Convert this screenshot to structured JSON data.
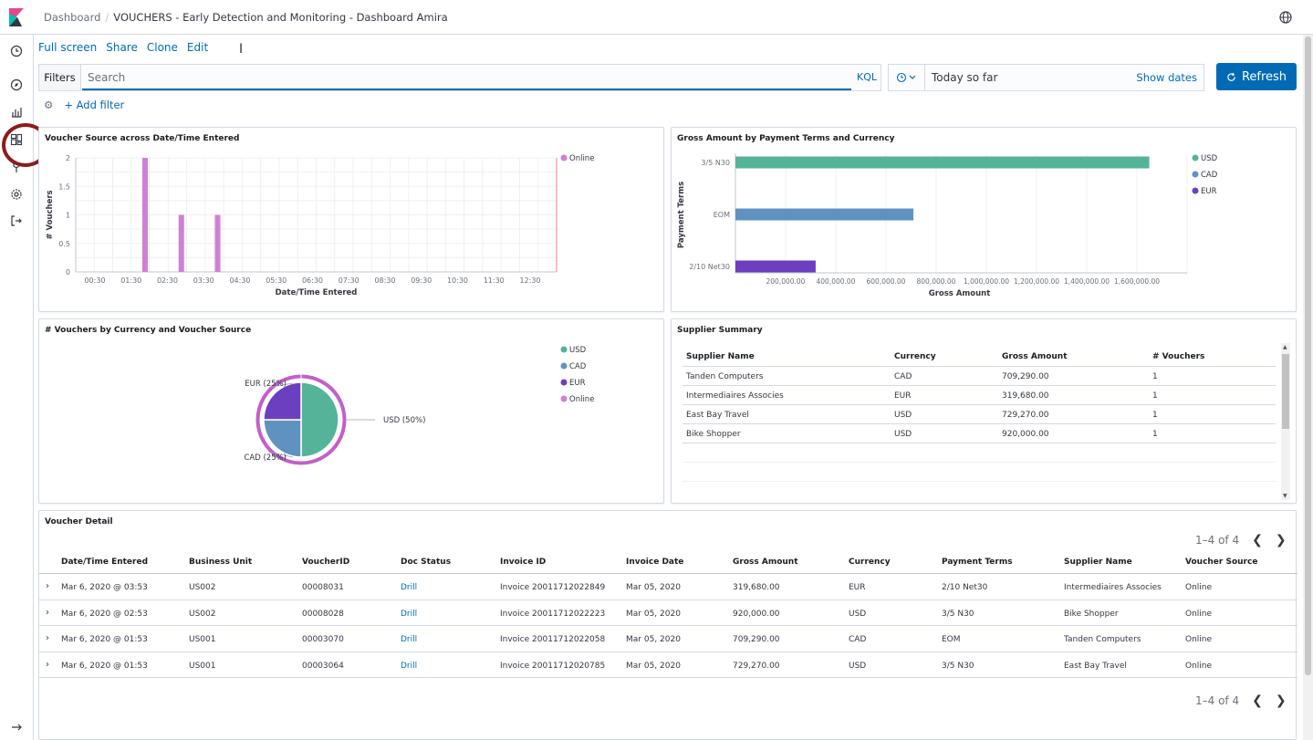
{
  "header": {
    "breadcrumb_root": "Dashboard",
    "breadcrumb_current": "VOUCHERS - Early Detection and Monitoring - Dashboard Amira"
  },
  "menu": {
    "full_screen": "Full screen",
    "share": "Share",
    "clone": "Clone",
    "edit": "Edit"
  },
  "query": {
    "filters_label": "Filters",
    "search_placeholder": "Search",
    "kql_label": "KQL",
    "date_value": "Today so far",
    "show_dates": "Show dates",
    "refresh_label": "Refresh",
    "add_filter": "+ Add filter"
  },
  "nav": {
    "icons": [
      "clock-icon",
      "compass-icon",
      "visualize-icon",
      "dashboard-icon",
      "devtools-icon",
      "management-icon",
      "logout-icon"
    ],
    "highlight_color": "#8b1c1c"
  },
  "colors": {
    "accent": "#006bb4",
    "usd": "#54b399",
    "cad": "#6092c0",
    "eur": "#6b3fbf",
    "online": "#d36086"
  },
  "panels": {
    "voucher_source_title": "Voucher Source across Date/Time Entered",
    "gross_amount_title": "Gross Amount by Payment Terms and Currency",
    "pie_title": "# Vouchers by Currency and Voucher Source",
    "supplier_title": "Supplier Summary",
    "detail_title": "Voucher Detail"
  },
  "chart_data": [
    {
      "type": "bar",
      "title": "Voucher Source across Date/Time Entered",
      "xlabel": "Date/Time Entered",
      "ylabel": "# Vouchers",
      "x_ticks": [
        "00:30",
        "01:30",
        "02:30",
        "03:30",
        "04:30",
        "05:30",
        "06:30",
        "07:30",
        "08:30",
        "09:30",
        "10:30",
        "11:30",
        "12:30"
      ],
      "y_ticks": [
        "0",
        "0.5",
        "1",
        "1.5",
        "2"
      ],
      "ylim": [
        0,
        2
      ],
      "series": [
        {
          "name": "Online",
          "x": [
            "01:53",
            "02:53",
            "03:53"
          ],
          "values": [
            2,
            1,
            1
          ]
        }
      ],
      "legend": "top-right",
      "grid": true
    },
    {
      "type": "bar",
      "orientation": "horizontal",
      "title": "Gross Amount by Payment Terms and Currency",
      "xlabel": "Gross Amount",
      "ylabel": "Payment Terms",
      "categories": [
        "3/5 N30",
        "EOM",
        "2/10 Net30"
      ],
      "x_ticks": [
        "200,000.00",
        "400,000.00",
        "600,000.00",
        "800,000.00",
        "1,000,000.00",
        "1,200,000.00",
        "1,400,000.00",
        "1,600,000.00"
      ],
      "series": [
        {
          "name": "USD",
          "category": "3/5 N30",
          "value": 1649270
        },
        {
          "name": "CAD",
          "category": "EOM",
          "value": 709290
        },
        {
          "name": "EUR",
          "category": "2/10 Net30",
          "value": 319680
        }
      ],
      "legend": "top-right",
      "grid": true
    },
    {
      "type": "pie",
      "title": "# Vouchers by Currency and Voucher Source",
      "inner": [
        {
          "name": "USD",
          "value": 2,
          "label": "USD (50%)"
        },
        {
          "name": "CAD",
          "value": 1,
          "label": "CAD (25%)"
        },
        {
          "name": "EUR",
          "value": 1,
          "label": "EUR (25%)"
        }
      ],
      "outer": [
        {
          "name": "Online",
          "value": 4
        }
      ],
      "legend_items": [
        "USD",
        "CAD",
        "EUR",
        "Online"
      ],
      "legend": "top-right"
    }
  ],
  "supplier": {
    "headers": [
      "Supplier Name",
      "Currency",
      "Gross Amount",
      "# Vouchers"
    ],
    "rows": [
      [
        "Tanden Computers",
        "CAD",
        "709,290.00",
        "1"
      ],
      [
        "Intermediaires Associes",
        "EUR",
        "319,680.00",
        "1"
      ],
      [
        "East Bay Travel",
        "USD",
        "729,270.00",
        "1"
      ],
      [
        "Bike Shopper",
        "USD",
        "920,000.00",
        "1"
      ]
    ]
  },
  "detail": {
    "headers": [
      "Date/Time Entered",
      "Business Unit",
      "VoucherID",
      "Doc Status",
      "Invoice ID",
      "Invoice Date",
      "Gross Amount",
      "Currency",
      "Payment Terms",
      "Supplier Name",
      "Voucher Source"
    ],
    "rows": [
      [
        "Mar 6, 2020 @ 03:53",
        "US002",
        "00008031",
        "Drill",
        "Invoice 20011712022849",
        "Mar 05, 2020",
        "319,680.00",
        "EUR",
        "2/10 Net30",
        "Intermediaires Associes",
        "Online"
      ],
      [
        "Mar 6, 2020 @ 02:53",
        "US002",
        "00008028",
        "Drill",
        "Invoice 20011712022223",
        "Mar 05, 2020",
        "920,000.00",
        "USD",
        "3/5 N30",
        "Bike Shopper",
        "Online"
      ],
      [
        "Mar 6, 2020 @ 01:53",
        "US001",
        "00003070",
        "Drill",
        "Invoice 20011712022058",
        "Mar 05, 2020",
        "709,290.00",
        "CAD",
        "EOM",
        "Tanden Computers",
        "Online"
      ],
      [
        "Mar 6, 2020 @ 01:53",
        "US001",
        "00003064",
        "Drill",
        "Invoice 20011712020785",
        "Mar 05, 2020",
        "729,270.00",
        "USD",
        "3/5 N30",
        "East Bay Travel",
        "Online"
      ]
    ],
    "pager_text": "1–4 of 4"
  }
}
